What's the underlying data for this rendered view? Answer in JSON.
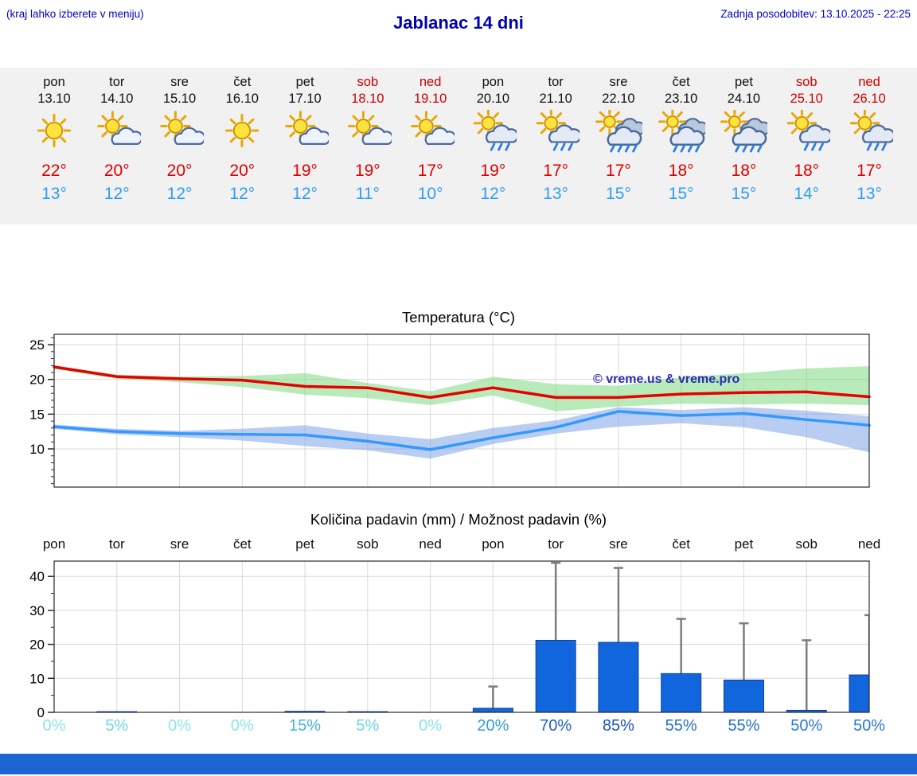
{
  "header": {
    "left_note": "(kraj lahko izberete v meniju)",
    "title": "Jablanac 14 dni",
    "last_update": "Zadnja posodobitev: 13.10.2025 - 22:25"
  },
  "forecast": {
    "days": [
      {
        "day": "pon",
        "date": "13.10",
        "weekend": false,
        "icon": "sun",
        "high": "22°",
        "low": "13°"
      },
      {
        "day": "tor",
        "date": "14.10",
        "weekend": false,
        "icon": "sun-cloud",
        "high": "20°",
        "low": "12°"
      },
      {
        "day": "sre",
        "date": "15.10",
        "weekend": false,
        "icon": "sun-cloud",
        "high": "20°",
        "low": "12°"
      },
      {
        "day": "čet",
        "date": "16.10",
        "weekend": false,
        "icon": "sun",
        "high": "20°",
        "low": "12°"
      },
      {
        "day": "pet",
        "date": "17.10",
        "weekend": false,
        "icon": "sun-cloud",
        "high": "19°",
        "low": "12°"
      },
      {
        "day": "sob",
        "date": "18.10",
        "weekend": true,
        "icon": "sun-cloud",
        "high": "19°",
        "low": "11°"
      },
      {
        "day": "ned",
        "date": "19.10",
        "weekend": true,
        "icon": "sun-cloud",
        "high": "17°",
        "low": "10°"
      },
      {
        "day": "pon",
        "date": "20.10",
        "weekend": false,
        "icon": "sun-rain",
        "high": "19°",
        "low": "12°"
      },
      {
        "day": "tor",
        "date": "21.10",
        "weekend": false,
        "icon": "sun-rain",
        "high": "17°",
        "low": "13°"
      },
      {
        "day": "sre",
        "date": "22.10",
        "weekend": false,
        "icon": "cloud-rain",
        "high": "17°",
        "low": "15°"
      },
      {
        "day": "čet",
        "date": "23.10",
        "weekend": false,
        "icon": "cloud-rain",
        "high": "18°",
        "low": "15°"
      },
      {
        "day": "pet",
        "date": "24.10",
        "weekend": false,
        "icon": "cloud-rain",
        "high": "18°",
        "low": "15°"
      },
      {
        "day": "sob",
        "date": "25.10",
        "weekend": true,
        "icon": "sun-rain",
        "high": "18°",
        "low": "14°"
      },
      {
        "day": "ned",
        "date": "26.10",
        "weekend": true,
        "icon": "sun-rain",
        "high": "17°",
        "low": "13°"
      }
    ]
  },
  "watermark": "© vreme.us & vreme.pro",
  "colors": {
    "accent_blue": "#0000cc",
    "high_temp": "#dd0000",
    "low_temp": "#2e9df2",
    "strip_bg": "#f1f1f1",
    "footer_bar": "#1b66d2"
  },
  "chart_data": [
    {
      "type": "line",
      "title": "Temperatura (°C)",
      "categories": [
        "pon",
        "tor",
        "sre",
        "čet",
        "pet",
        "sob",
        "ned",
        "pon",
        "tor",
        "sre",
        "čet",
        "pet",
        "sob",
        "ned"
      ],
      "ylim": [
        4.5,
        26.5
      ],
      "yticks": [
        10,
        15,
        20,
        25
      ],
      "grid": true,
      "legend": "none",
      "series": [
        {
          "name": "temperatura max",
          "color": "#e60000",
          "values": [
            21.8,
            20.4,
            20.1,
            19.9,
            19.0,
            18.8,
            17.4,
            18.8,
            17.4,
            17.4,
            17.9,
            18.1,
            18.2,
            17.5
          ]
        },
        {
          "name": "temperatura min",
          "color": "#3399ff",
          "values": [
            13.2,
            12.5,
            12.2,
            12.1,
            12.0,
            11.1,
            9.9,
            11.6,
            13.1,
            15.4,
            14.8,
            15.1,
            14.2,
            13.4
          ]
        }
      ],
      "bands": [
        {
          "name": "razpon max",
          "color": "#7fd87f",
          "upper": [
            22.0,
            20.7,
            20.4,
            20.5,
            20.9,
            19.5,
            18.3,
            20.4,
            19.3,
            19.1,
            20.3,
            20.9,
            21.6,
            21.9
          ],
          "lower": [
            21.5,
            20.1,
            19.6,
            18.9,
            17.8,
            17.3,
            16.3,
            17.7,
            15.4,
            16.1,
            16.5,
            16.4,
            16.5,
            16.3
          ]
        },
        {
          "name": "razpon min",
          "color": "#7fa4e8",
          "upper": [
            13.5,
            12.9,
            12.6,
            12.9,
            13.4,
            12.2,
            11.4,
            13.0,
            14.1,
            16.0,
            15.6,
            16.0,
            15.5,
            14.7
          ],
          "lower": [
            12.9,
            12.1,
            11.7,
            11.2,
            10.4,
            9.8,
            8.6,
            10.7,
            12.2,
            13.2,
            13.7,
            13.1,
            11.7,
            9.5
          ]
        }
      ]
    },
    {
      "type": "bar",
      "title": "Količina padavin (mm) / Možnost padavin (%)",
      "categories": [
        "pon",
        "tor",
        "sre",
        "čet",
        "pet",
        "sob",
        "ned",
        "pon",
        "tor",
        "sre",
        "čet",
        "pet",
        "sob",
        "ned"
      ],
      "ylim": [
        0,
        44.5
      ],
      "yticks": [
        0,
        10,
        20,
        30,
        40
      ],
      "grid": true,
      "bar_color": "#1266dd",
      "bar_edge_color": "#0a3f9a",
      "whisker_color": "#7d7d7d",
      "values": [
        0,
        0.2,
        0,
        0,
        0.3,
        0.2,
        0,
        1.2,
        21.2,
        20.6,
        11.4,
        9.5,
        0.6,
        11.0
      ],
      "whisker_max": [
        0,
        0,
        0,
        0,
        0,
        0,
        0,
        7.6,
        44.0,
        42.5,
        27.5,
        26.2,
        21.2,
        28.6
      ],
      "probability": [
        {
          "label": "0%",
          "color": "#8be4ec"
        },
        {
          "label": "5%",
          "color": "#6cd9e3"
        },
        {
          "label": "0%",
          "color": "#8be4ec"
        },
        {
          "label": "0%",
          "color": "#8be4ec"
        },
        {
          "label": "15%",
          "color": "#44b4da"
        },
        {
          "label": "5%",
          "color": "#6cd9e3"
        },
        {
          "label": "0%",
          "color": "#8be4ec"
        },
        {
          "label": "20%",
          "color": "#339fd2"
        },
        {
          "label": "70%",
          "color": "#1d5fca"
        },
        {
          "label": "85%",
          "color": "#1852c4"
        },
        {
          "label": "55%",
          "color": "#2470cd"
        },
        {
          "label": "55%",
          "color": "#2470cd"
        },
        {
          "label": "50%",
          "color": "#2a7ad0"
        },
        {
          "label": "50%",
          "color": "#2a7ad0"
        }
      ]
    }
  ]
}
